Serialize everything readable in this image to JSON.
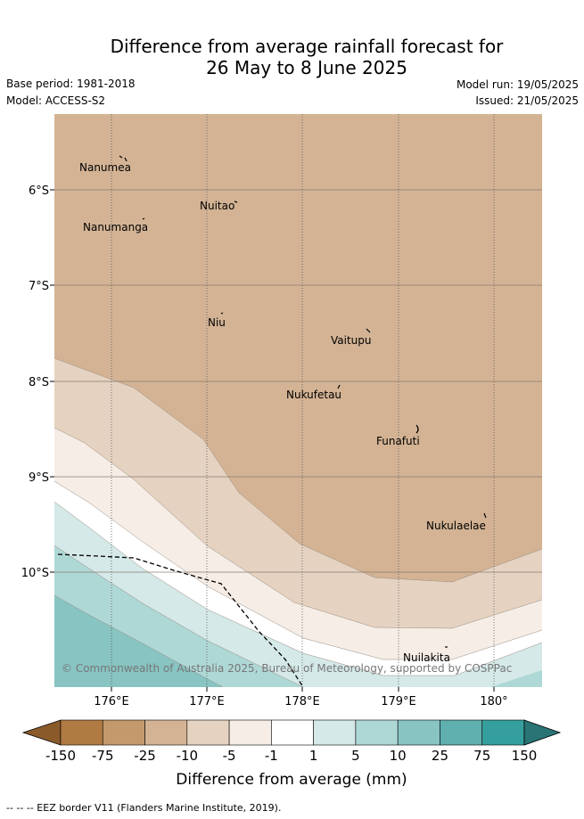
{
  "title_line1": "Difference from average rainfall forecast for",
  "title_line2": "26 May to 8 June 2025",
  "base_period": "Base period: 1981-2018",
  "model": "Model: ACCESS-S2",
  "model_run": "Model run: 19/05/2025",
  "issued": "Issued: 21/05/2025",
  "copyright": "© Commonwealth of Australia 2025, Bureau of Meteorology, supported by COSPPac",
  "footer_note": "-- -- -- EEZ border V11 (Flanders Marine Institute, 2019).",
  "map": {
    "lat_labels": [
      "6°S",
      "7°S",
      "8°S",
      "9°S",
      "10°S"
    ],
    "lon_labels": [
      "176°E",
      "177°E",
      "178°E",
      "179°E",
      "180°"
    ],
    "places": [
      {
        "name": "Nanumea"
      },
      {
        "name": "Nuitao"
      },
      {
        "name": "Nanumanga"
      },
      {
        "name": "Niu"
      },
      {
        "name": "Vaitupu"
      },
      {
        "name": "Nukufetau"
      },
      {
        "name": "Funafuti"
      },
      {
        "name": "Nukulaelae"
      },
      {
        "name": "Nuilakita"
      }
    ]
  },
  "colorbar": {
    "title": "Difference from average (mm)",
    "ticks": [
      "-150",
      "-75",
      "-25",
      "-10",
      "-5",
      "-1",
      "1",
      "5",
      "10",
      "25",
      "75",
      "150"
    ],
    "colors": [
      "#8b5a2b",
      "#b07a43",
      "#c49a6c",
      "#d3b394",
      "#e5d2c0",
      "#f5ede6",
      "#ffffff",
      "#d4e9e8",
      "#aed8d6",
      "#87c4c2",
      "#5fb0af",
      "#359f9d",
      "#297474"
    ]
  }
}
